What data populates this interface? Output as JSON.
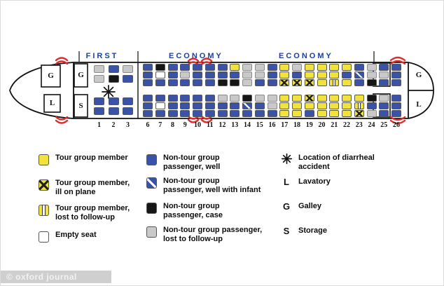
{
  "watermark": "© oxford journal",
  "plane": {
    "sections": {
      "first": "FIRST",
      "economy_forward": "ECONOMY",
      "economy_aft": "ECONOMY"
    },
    "facilities": {
      "nose_galley": "G",
      "nose_lavatory": "L",
      "front_galley": "G",
      "front_storage": "S",
      "rear_galley": "G",
      "rear_lavatory": "L",
      "tail_galley": "G",
      "tail_lavatory": "L"
    }
  },
  "seat_legend_codes": {
    "Y": "Tour group member",
    "X": "Tour group member, ill on plane",
    "L": "Tour group member, lost to follow-up",
    "E": "Empty seat",
    "B": "Non-tour group passenger, well",
    "I": "Non-tour group passenger, well with infant",
    "C": "Non-tour group passenger, case",
    "G": "Non-tour group passenger, lost to follow-up"
  },
  "seat_map": {
    "first_class": {
      "rows": [
        {
          "row": "1",
          "top": [
            "G",
            "G"
          ],
          "bottom": [
            "B",
            "B"
          ]
        },
        {
          "row": "2",
          "top": [
            "B",
            "C"
          ],
          "bottom": [
            "B",
            "B"
          ]
        },
        {
          "row": "3",
          "top": [
            "G",
            "B"
          ],
          "bottom": [
            "B",
            "B"
          ]
        }
      ]
    },
    "economy": {
      "rows": [
        {
          "row": "6",
          "top": [
            "B",
            "B",
            "B"
          ],
          "bottom": [
            "B",
            "B",
            "B"
          ]
        },
        {
          "row": "7",
          "top": [
            "C",
            "E",
            "B"
          ],
          "bottom": [
            "B",
            "E",
            "B"
          ]
        },
        {
          "row": "8",
          "top": [
            "B",
            "B",
            "B"
          ],
          "bottom": [
            "B",
            "B",
            "B"
          ]
        },
        {
          "row": "9",
          "top": [
            "B",
            "G",
            "B"
          ],
          "bottom": [
            "B",
            "B",
            "B"
          ]
        },
        {
          "row": "10",
          "top": [
            "B",
            "B",
            "B"
          ],
          "bottom": [
            "B",
            "B",
            "B"
          ]
        },
        {
          "row": "11",
          "top": [
            "B",
            "B",
            "B"
          ],
          "bottom": [
            "B",
            "B",
            "B"
          ]
        },
        {
          "row": "12",
          "top": [
            "B",
            "B",
            "C"
          ],
          "bottom": [
            "G",
            "B",
            "B"
          ]
        },
        {
          "row": "13",
          "top": [
            "Y",
            "B",
            "C"
          ],
          "bottom": [
            "G",
            "B",
            "B"
          ]
        },
        {
          "row": "14",
          "top": [
            "G",
            "G",
            "G"
          ],
          "bottom": [
            "C",
            "I",
            "B"
          ]
        },
        {
          "row": "15",
          "top": [
            "G",
            "G",
            "B"
          ],
          "bottom": [
            "G",
            "B",
            "B"
          ]
        },
        {
          "row": "16",
          "top": [
            "B",
            "B",
            "B"
          ],
          "bottom": [
            "G",
            "G",
            "B"
          ]
        },
        {
          "row": "17",
          "top": [
            "Y",
            "Y",
            "X"
          ],
          "bottom": [
            "Y",
            "Y",
            "Y"
          ]
        },
        {
          "row": "18",
          "top": [
            "G",
            "B",
            "X"
          ],
          "bottom": [
            "Y",
            "Y",
            "Y"
          ]
        },
        {
          "row": "19",
          "top": [
            "Y",
            "Y",
            "X"
          ],
          "bottom": [
            "X",
            "Y",
            "B"
          ]
        },
        {
          "row": "20",
          "top": [
            "Y",
            "Y",
            "Y"
          ],
          "bottom": [
            "Y",
            "Y",
            "Y"
          ]
        },
        {
          "row": "21",
          "top": [
            "Y",
            "Y",
            "L"
          ],
          "bottom": [
            "Y",
            "Y",
            "Y"
          ]
        },
        {
          "row": "22",
          "top": [
            "Y",
            "B",
            "Y"
          ],
          "bottom": [
            "Y",
            "Y",
            "Y"
          ]
        },
        {
          "row": "23",
          "top": [
            "B",
            "I",
            "B"
          ],
          "bottom": [
            "Y",
            "L",
            "X"
          ]
        },
        {
          "row": "24",
          "top": [
            "G",
            "G",
            "C"
          ],
          "bottom": [
            "C",
            "B",
            "G"
          ]
        },
        {
          "row": "25",
          "top": [
            "B",
            "G",
            "B"
          ],
          "bottom": [
            "G",
            "B",
            "B"
          ]
        },
        {
          "row": "26",
          "top": [
            "B",
            "B",
            "B"
          ],
          "bottom": [
            "B",
            "B",
            "B"
          ]
        }
      ]
    }
  },
  "legend": {
    "columns": [
      [
        {
          "swatch": "Y",
          "label": "Tour group member"
        },
        {
          "swatch": "X",
          "label": "Tour group member,\nill on plane"
        },
        {
          "swatch": "L",
          "label": "Tour group member,\nlost to follow-up"
        },
        {
          "swatch": "E",
          "label": "Empty seat"
        }
      ],
      [
        {
          "swatch": "B",
          "label": "Non-tour group\npassenger, well"
        },
        {
          "swatch": "I",
          "label": "Non-tour group\npassenger, well with infant"
        },
        {
          "swatch": "C",
          "label": "Non-tour group\npassenger, case"
        },
        {
          "swatch": "G",
          "label": "Non-tour group passenger,\nlost to follow-up"
        }
      ],
      [
        {
          "symbol": "asterisk",
          "label": "Location of diarrheal\naccident"
        },
        {
          "symbol": "L",
          "label": "Lavatory"
        },
        {
          "symbol": "G",
          "label": "Galley"
        },
        {
          "symbol": "S",
          "label": "Storage"
        }
      ]
    ]
  },
  "colors": {
    "tour_yellow": "#f2e33c",
    "non_tour_blue": "#3a53a6",
    "case_black": "#161616",
    "lost_gray": "#c9c9c9",
    "door_red": "#e02b2b",
    "section_label_navy": "#1b3fa3"
  }
}
